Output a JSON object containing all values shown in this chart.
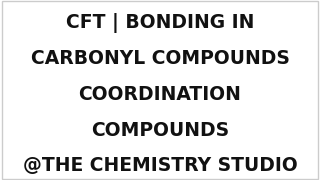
{
  "background_color": "#ffffff",
  "border_color": "#cccccc",
  "text_color": "#111111",
  "lines": [
    "CFT | BONDING IN",
    "CARBONYL COMPOUNDS",
    "COORDINATION",
    "COMPOUNDS",
    "@THE CHEMISTRY STUDIO"
  ],
  "font_size": 13.5,
  "font_weight": "bold",
  "font_family": "DejaVu Sans",
  "fig_width": 3.2,
  "fig_height": 1.8,
  "dpi": 100
}
